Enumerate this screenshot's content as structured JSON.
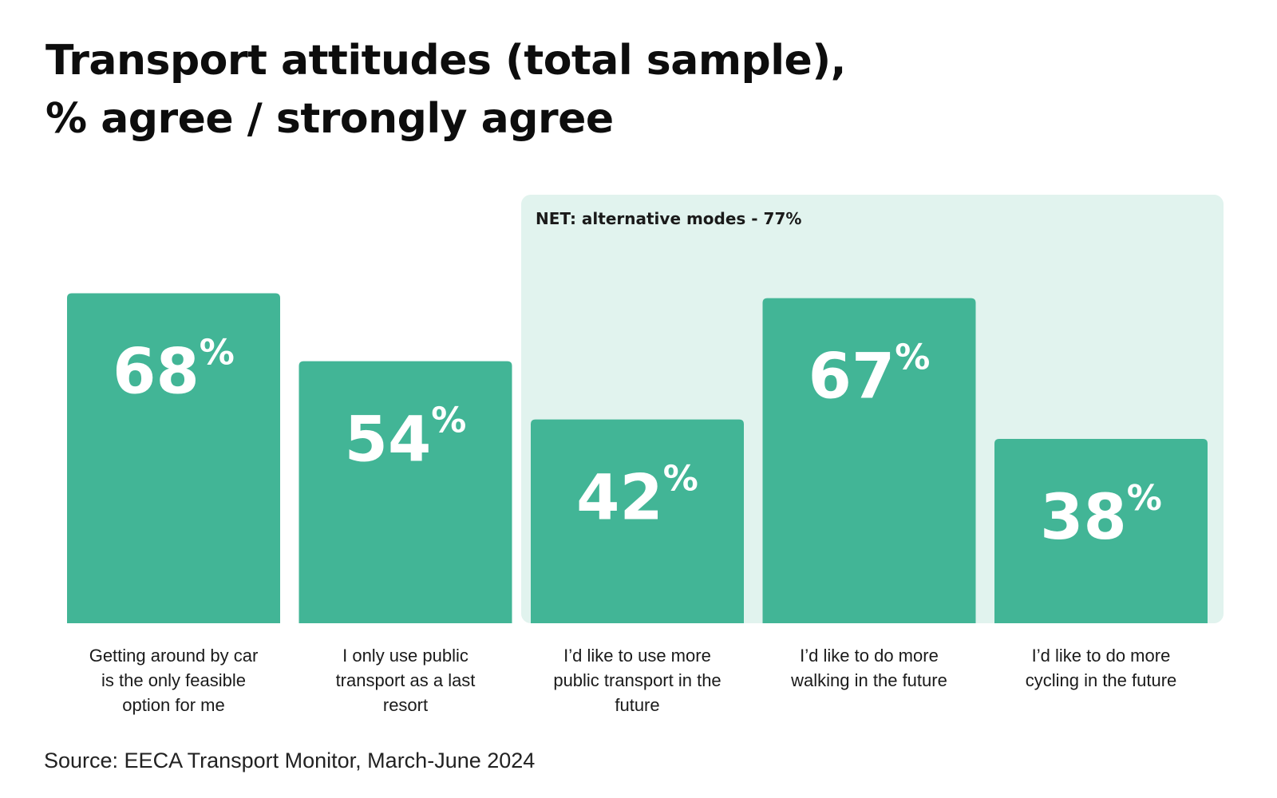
{
  "title": {
    "line1": "Transport attitudes (total sample),",
    "line2": "% agree / strongly agree"
  },
  "source": "Source: EECA Transport Monitor, March-June 2024",
  "colors": {
    "bar": "#42B596",
    "highlight_bg": "#E1F3EE",
    "value_text": "#FFFFFF",
    "label_text": "#1A1A1A"
  },
  "chart_data": {
    "type": "bar",
    "title": "Transport attitudes (total sample), % agree / strongly agree",
    "unit": "%",
    "ylim": [
      0,
      80
    ],
    "categories": [
      "Getting around by car is the only feasible option for me",
      "I only use public transport as a last resort",
      "I’d like to use more public transport in the future",
      "I’d like to do more walking in the future",
      "I’d like to do more cycling in the future"
    ],
    "category_lines": [
      [
        "Getting around by car",
        "is the only feasible",
        "option for me"
      ],
      [
        "I only use public",
        "transport as a last",
        "resort"
      ],
      [
        "I’d like to use more",
        "public transport in the",
        "future"
      ],
      [
        "I’d like to do more",
        "walking in the future"
      ],
      [
        "I’d like to do more",
        "cycling in the future"
      ]
    ],
    "values": [
      68,
      54,
      42,
      67,
      38
    ],
    "group": {
      "label": "NET: alternative modes - 77%",
      "name": "NET: alternative modes",
      "value": 77,
      "start_index": 2,
      "end_index": 4
    }
  }
}
